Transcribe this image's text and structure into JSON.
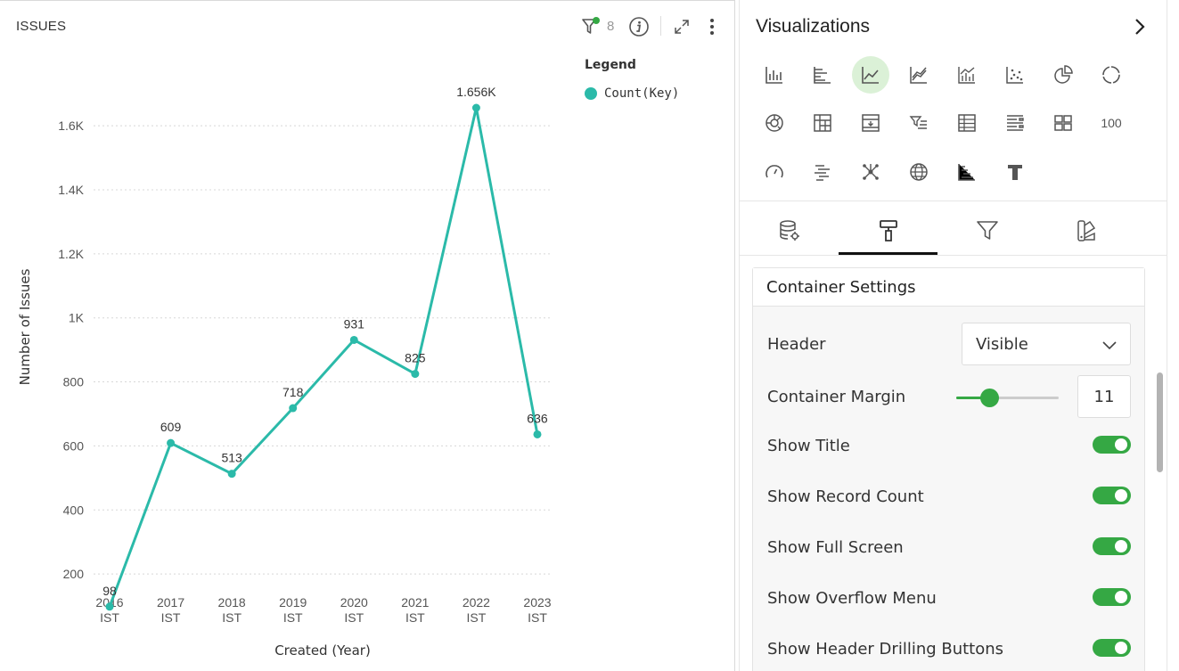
{
  "widget": {
    "title": "ISSUES",
    "filter_count": "8"
  },
  "chart_data": {
    "type": "line",
    "categories": [
      "2016 IST",
      "2017 IST",
      "2018 IST",
      "2019 IST",
      "2020 IST",
      "2021 IST",
      "2022 IST",
      "2023 IST"
    ],
    "category_lines": [
      [
        "2016",
        "IST"
      ],
      [
        "2017",
        "IST"
      ],
      [
        "2018",
        "IST"
      ],
      [
        "2019",
        "IST"
      ],
      [
        "2020",
        "IST"
      ],
      [
        "2021",
        "IST"
      ],
      [
        "2022",
        "IST"
      ],
      [
        "2023",
        "IST"
      ]
    ],
    "series": [
      {
        "name": "Count(Key)",
        "values": [
          98,
          609,
          513,
          718,
          931,
          825,
          1656,
          636
        ],
        "color": "#2bbaa9"
      }
    ],
    "data_labels": [
      "98",
      "609",
      "513",
      "718",
      "931",
      "825",
      "1.656K",
      "636"
    ],
    "xlabel": "Created (Year)",
    "ylabel": "Number of Issues",
    "y_ticks": [
      200,
      400,
      600,
      800,
      1000,
      1200,
      1400,
      1600
    ],
    "y_tick_labels": [
      "200",
      "400",
      "600",
      "800",
      "1K",
      "1.2K",
      "1.4K",
      "1.6K"
    ],
    "ylim": [
      0,
      1700
    ],
    "grid": true,
    "legend": {
      "title": "Legend",
      "position": "top-right"
    }
  },
  "panel": {
    "title": "Visualizations",
    "viz_number_label": "100",
    "settings": {
      "title": "Container Settings",
      "header_label": "Header",
      "header_value": "Visible",
      "margin_label": "Container Margin",
      "margin_value": "11",
      "margin_slider_fraction": 0.33,
      "toggles": [
        {
          "label": "Show Title",
          "on": true
        },
        {
          "label": "Show Record Count",
          "on": true
        },
        {
          "label": "Show Full Screen",
          "on": true
        },
        {
          "label": "Show Overflow Menu",
          "on": true
        },
        {
          "label": "Show Header Drilling Buttons",
          "on": true
        }
      ]
    }
  },
  "colors": {
    "series": "#2bbaa9",
    "toggle_on": "#35a844",
    "active_viz_bg": "#dbf1d7"
  }
}
